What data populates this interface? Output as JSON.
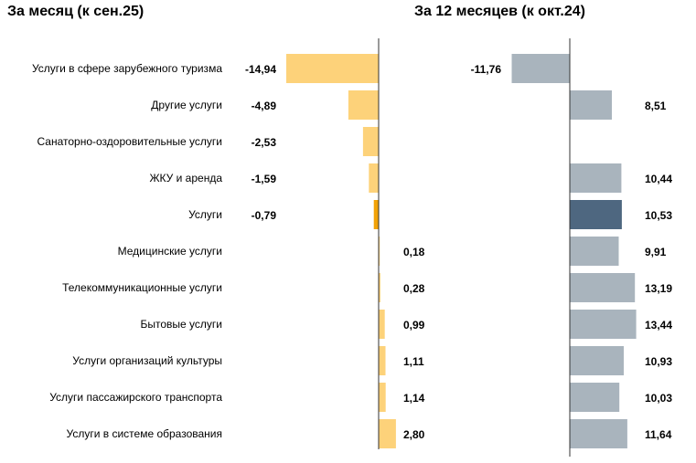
{
  "titles": {
    "left": "За месяц (к сен.25)",
    "right": "За 12 месяцев (к окт.24)"
  },
  "chart_data": [
    {
      "type": "bar",
      "orientation": "horizontal",
      "title": "За месяц (к сен.25)",
      "categories": [
        "Услуги в сфере зарубежного туризма",
        "Другие услуги",
        "Санаторно-оздоровительные услуги",
        "ЖКУ и аренда",
        "Услуги",
        "Медицинские услуги",
        "Телекоммуникационные услуги",
        "Бытовые услуги",
        "Услуги организаций культуры",
        "Услуги пассажирского транспорта",
        "Услуги в системе образования"
      ],
      "values": [
        -14.94,
        -4.89,
        -2.53,
        -1.59,
        -0.79,
        0.18,
        0.28,
        0.99,
        1.11,
        1.14,
        2.8
      ],
      "labels": [
        "-14,94",
        "-4,89",
        "-2,53",
        "-1,59",
        "-0,79",
        "0,18",
        "0,28",
        "0,99",
        "1,11",
        "1,14",
        "2,80"
      ],
      "highlight_index": 4,
      "colors": {
        "bar": "#fdd27a",
        "highlight": "#f2a207",
        "axis": "#333333"
      }
    },
    {
      "type": "bar",
      "orientation": "horizontal",
      "title": "За 12 месяцев (к окт.24)",
      "categories": [
        "Услуги в сфере зарубежного туризма",
        "Другие услуги",
        "Санаторно-оздоровительные услуги",
        "ЖКУ и аренда",
        "Услуги",
        "Медицинские услуги",
        "Телекоммуникационные услуги",
        "Бытовые услуги",
        "Услуги организаций культуры",
        "Услуги пассажирского транспорта",
        "Услуги в системе образования"
      ],
      "values": [
        -11.76,
        8.51,
        null,
        10.44,
        10.53,
        9.91,
        13.19,
        13.44,
        10.93,
        10.03,
        11.64
      ],
      "labels": [
        "-11,76",
        "8,51",
        "",
        "10,44",
        "10,53",
        "9,91",
        "13,19",
        "13,44",
        "10,93",
        "10,03",
        "11,64"
      ],
      "highlight_index": 4,
      "colors": {
        "bar": "#a9b4bd",
        "highlight": "#4e6780",
        "axis": "#333333"
      }
    }
  ]
}
